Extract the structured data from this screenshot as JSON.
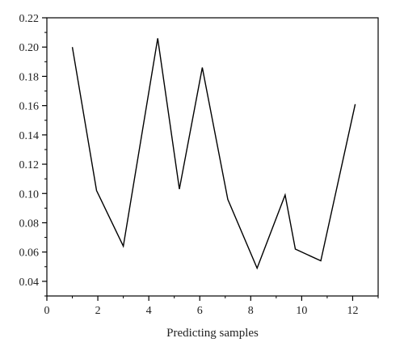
{
  "chart_data": {
    "type": "line",
    "xlabel": "Predicting samples",
    "ylabel": "",
    "xlim": [
      0,
      13
    ],
    "ylim": [
      0.03,
      0.22
    ],
    "x_ticks": [
      0,
      2,
      4,
      6,
      8,
      10,
      12
    ],
    "y_ticks": [
      0.04,
      0.06,
      0.08,
      0.1,
      0.12,
      0.14,
      0.16,
      0.18,
      0.2,
      0.22
    ],
    "x_tick_labels": [
      "0",
      "2",
      "4",
      "6",
      "8",
      "10",
      "12"
    ],
    "y_tick_labels": [
      "0.04",
      "0.06",
      "0.08",
      "0.10",
      "0.12",
      "0.14",
      "0.16",
      "0.18",
      "0.20",
      "0.22"
    ],
    "grid": false,
    "line_color": "#000000",
    "series": [
      {
        "x": [
          1.0,
          1.95,
          3.0,
          4.35,
          5.2,
          6.1,
          7.1,
          8.25,
          9.35,
          9.75,
          10.75,
          12.1
        ],
        "values": [
          0.2,
          0.102,
          0.064,
          0.206,
          0.103,
          0.186,
          0.096,
          0.049,
          0.099,
          0.062,
          0.054,
          0.161
        ]
      }
    ]
  }
}
